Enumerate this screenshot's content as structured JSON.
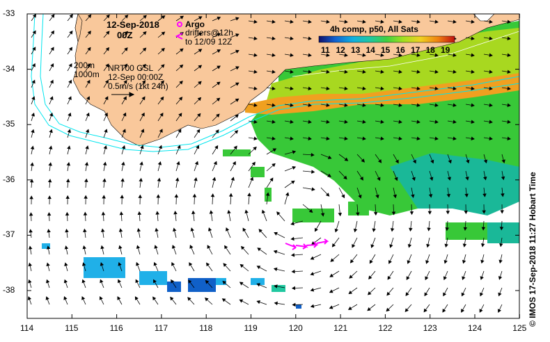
{
  "map": {
    "date": "12-Sep-2018",
    "time": "00Z",
    "argo_label": "Argo",
    "drifters_label": "drifters@12h",
    "drifters_range": "to 12/09 12Z",
    "depth_200": "200m",
    "depth_1000": "1000m",
    "product": "NRT00 GSL",
    "product_time": "12-Sep 00:00Z",
    "scale_label": "0.5m/s (1kt 24h)",
    "colorbar_title": "4h comp, p50, All Sats",
    "colorbar_ticks": [
      "11",
      "12",
      "13",
      "14",
      "15",
      "16",
      "17",
      "18",
      "19"
    ],
    "x_ticks": [
      "114",
      "115",
      "116",
      "117",
      "118",
      "119",
      "120",
      "121",
      "122",
      "123",
      "124",
      "125"
    ],
    "y_ticks": [
      "-33",
      "-34",
      "-35",
      "-36",
      "-37",
      "-38"
    ],
    "credit": "© IMOS 17-Sep-2018 11:27 Hobart Time",
    "colors": {
      "land": "#f9c89b",
      "drifter": "#ff00ff",
      "isobath": "#00e5ee",
      "arrow": "#000000"
    }
  }
}
